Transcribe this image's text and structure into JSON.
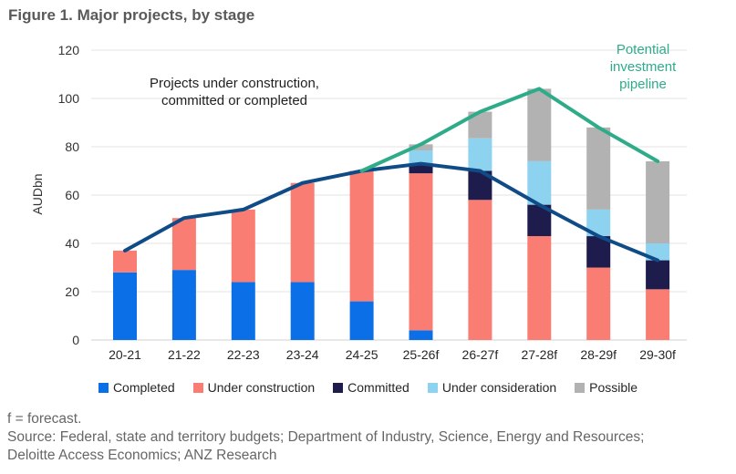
{
  "page": {
    "title": "Figure 1. Major projects, by stage"
  },
  "chart_data": {
    "type": "bar",
    "stacked": true,
    "title": "Figure 1. Major projects, by stage",
    "xlabel": "",
    "ylabel": "AUDbn",
    "ylim": [
      0,
      120
    ],
    "yticks": [
      0,
      20,
      40,
      60,
      80,
      100,
      120
    ],
    "grid": true,
    "legend_position": "bottom",
    "categories": [
      "20-21",
      "21-22",
      "22-23",
      "23-24",
      "24-25",
      "25-26f",
      "26-27f",
      "27-28f",
      "28-29f",
      "29-30f"
    ],
    "series": [
      {
        "name": "Completed",
        "color": "#0b70e8",
        "values": [
          28,
          29,
          24,
          24,
          16,
          4,
          0,
          0,
          0,
          0
        ]
      },
      {
        "name": "Under construction",
        "color": "#fa7d73",
        "values": [
          9,
          21.5,
          30,
          41,
          54,
          65,
          58,
          43,
          30,
          21
        ]
      },
      {
        "name": "Committed",
        "color": "#1e1b4d",
        "values": [
          0,
          0,
          0,
          0,
          0,
          4,
          12,
          13,
          13,
          12
        ]
      },
      {
        "name": "Under consideration",
        "color": "#8dd3f0",
        "values": [
          0,
          0,
          0,
          0,
          0,
          5.5,
          13.5,
          18,
          11,
          7
        ]
      },
      {
        "name": "Possible",
        "color": "#b2b2b2",
        "values": [
          0,
          0,
          0,
          0,
          0,
          2.5,
          11,
          30,
          34,
          34
        ]
      }
    ],
    "lines": [
      {
        "name": "Projects under construction, committed or completed",
        "color": "#0f4c87",
        "values": [
          37,
          50.5,
          54,
          65,
          70,
          73,
          70,
          56,
          43,
          33
        ]
      },
      {
        "name": "Potential investment pipeline",
        "color": "#2eac8a",
        "values": [
          null,
          null,
          null,
          null,
          70,
          81,
          94.5,
          104,
          88,
          74
        ]
      }
    ]
  },
  "annotations": {
    "construction_lines": [
      "Projects under construction,",
      "committed or completed"
    ],
    "pipeline_lines": [
      "Potential",
      "investment",
      "pipeline"
    ],
    "pipeline_color": "#2eac8a"
  },
  "footer": {
    "lines": [
      "f = forecast.",
      "Source: Federal, state and territory budgets; Department of Industry, Science, Energy and Resources;",
      "Deloitte Access Economics; ANZ Research"
    ]
  }
}
